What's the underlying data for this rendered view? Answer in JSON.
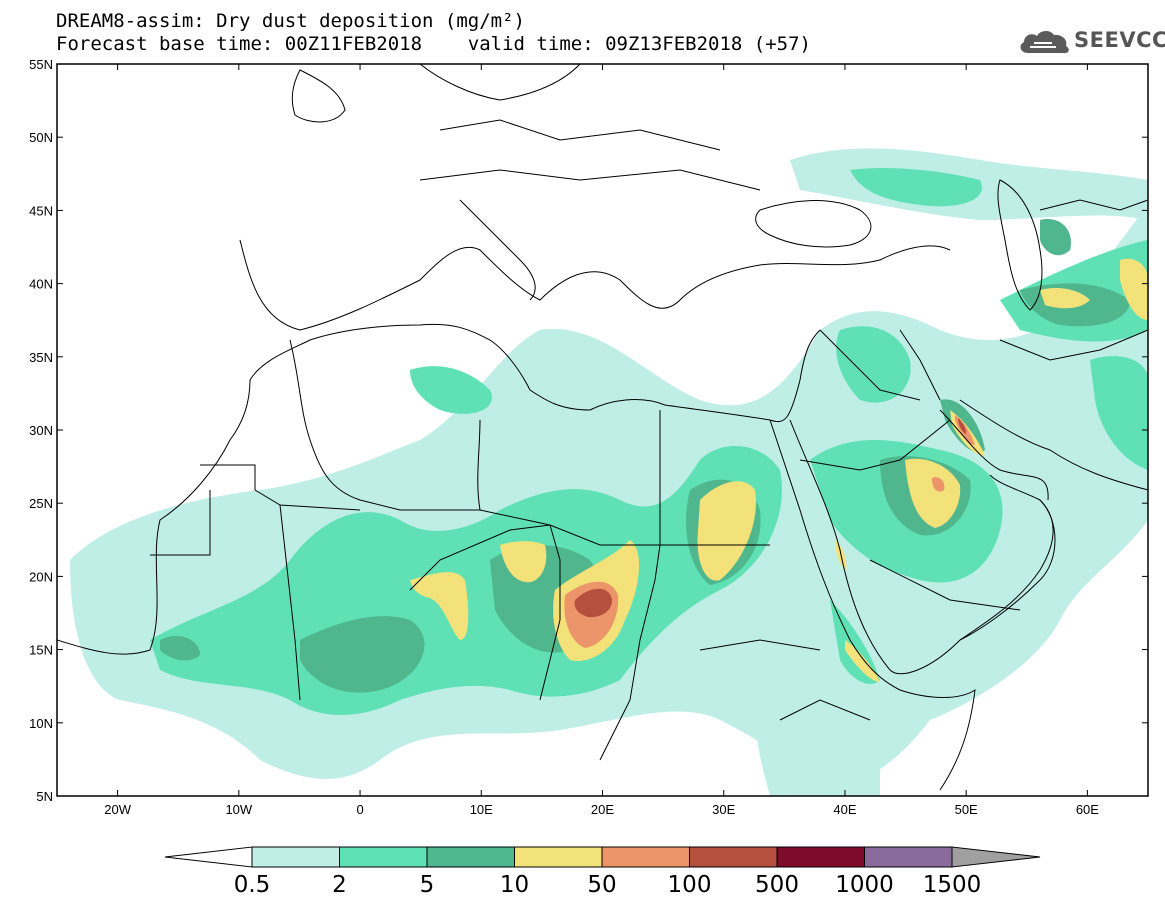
{
  "header": {
    "title_line1": "DREAM8-assim: Dry dust deposition (mg/m²)",
    "title_line2": "Forecast base time: 00Z11FEB2018    valid time: 09Z13FEB2018 (+57)",
    "logo_text": "SEEVCCC",
    "logo_icon": "cloud-icon"
  },
  "map": {
    "lon_range": [
      -25,
      65
    ],
    "lat_range": [
      5,
      55
    ],
    "lat_ticks": [
      {
        "value": 55,
        "label": "55N"
      },
      {
        "value": 50,
        "label": "50N"
      },
      {
        "value": 45,
        "label": "45N"
      },
      {
        "value": 40,
        "label": "40N"
      },
      {
        "value": 35,
        "label": "35N"
      },
      {
        "value": 30,
        "label": "30N"
      },
      {
        "value": 25,
        "label": "25N"
      },
      {
        "value": 20,
        "label": "20N"
      },
      {
        "value": 15,
        "label": "15N"
      },
      {
        "value": 10,
        "label": "10N"
      },
      {
        "value": 5,
        "label": "5N"
      }
    ],
    "lon_ticks": [
      {
        "value": -20,
        "label": "20W"
      },
      {
        "value": -10,
        "label": "10W"
      },
      {
        "value": 0,
        "label": "0"
      },
      {
        "value": 10,
        "label": "10E"
      },
      {
        "value": 20,
        "label": "20E"
      },
      {
        "value": 30,
        "label": "30E"
      },
      {
        "value": 40,
        "label": "40E"
      },
      {
        "value": 50,
        "label": "50E"
      },
      {
        "value": 60,
        "label": "60E"
      }
    ]
  },
  "legend": {
    "labels": [
      "0.5",
      "2",
      "5",
      "10",
      "50",
      "100",
      "500",
      "1000",
      "1500"
    ],
    "colors": [
      "#ffffff",
      "#bfeee6",
      "#5fe1b5",
      "#4fb68e",
      "#f3e27a",
      "#ec946a",
      "#b6503e",
      "#800a2a",
      "#8b6b9c",
      "#a0a0a0"
    ]
  }
}
